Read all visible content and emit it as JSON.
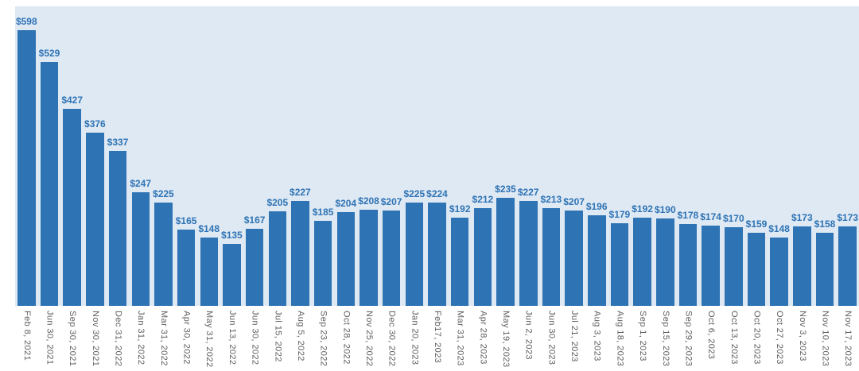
{
  "chart_data": {
    "type": "bar",
    "title": "",
    "xlabel": "",
    "ylabel": "",
    "value_prefix": "$",
    "ylim": [
      0,
      650
    ],
    "grid": false,
    "legend": false,
    "axis_labels_rotated": "vertical",
    "bar_color": "#2e73b4",
    "plot_background": "#dfe9f4",
    "value_label_color": "#2e73b4",
    "axis_label_color": "#5e5e5e",
    "categories": [
      "Feb 8, 2021",
      "Jun 30, 2021",
      "Sep 30, 2021",
      "Nov 30, 2021",
      "Dec 31, 2022",
      "Jan 31, 2022",
      "Mar 31, 2022",
      "Apr 30, 2022",
      "May 31, 2022",
      "Jun 13, 2022",
      "Jun 30, 2022",
      "Jul 15, 2022",
      "Aug 5, 2022",
      "Sep 23, 2022",
      "Oct 28, 2022",
      "Nov 25, 2022",
      "Dec 30, 2022",
      "Jan 20, 2023",
      "Feb17, 2023",
      "Mar 31, 2023",
      "Apr 28, 2023",
      "May 19, 2023",
      "Jun 2, 2023",
      "Jun 30, 2023",
      "Jul 21, 2023",
      "Aug 3, 2023",
      "Aug 18, 2023",
      "Sep 1, 2023",
      "Sep 15, 2023",
      "Sep 29, 2023",
      "Oct 6, 2023",
      "Oct 13, 2023",
      "Oct 20, 2023",
      "Oct 27, 2023",
      "Nov 3, 2023",
      "Nov 10, 2023",
      "Nov 17, 2023"
    ],
    "values": [
      598,
      529,
      427,
      376,
      337,
      247,
      225,
      165,
      148,
      135,
      167,
      205,
      227,
      185,
      204,
      208,
      207,
      225,
      224,
      192,
      212,
      235,
      227,
      213,
      207,
      196,
      179,
      192,
      190,
      178,
      174,
      170,
      159,
      148,
      173,
      158,
      173
    ]
  }
}
